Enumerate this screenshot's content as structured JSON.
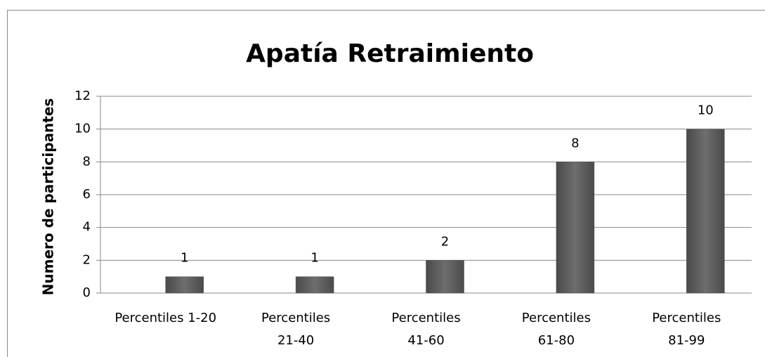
{
  "chart_data": {
    "type": "bar",
    "title": "Apatía Retraimiento",
    "y_label": "Numero de participantes",
    "categories": [
      "Percentiles 1-20",
      "Percentiles 21-40",
      "Percentiles 41-60",
      "Percentiles 61-80",
      "Percentiles 81-99"
    ],
    "values": [
      1,
      1,
      2,
      8,
      10
    ],
    "color": "#6e6e6e",
    "ylim": [
      0,
      12
    ],
    "yticks": [
      0,
      2,
      4,
      6,
      8,
      10,
      12
    ],
    "grid": true
  }
}
